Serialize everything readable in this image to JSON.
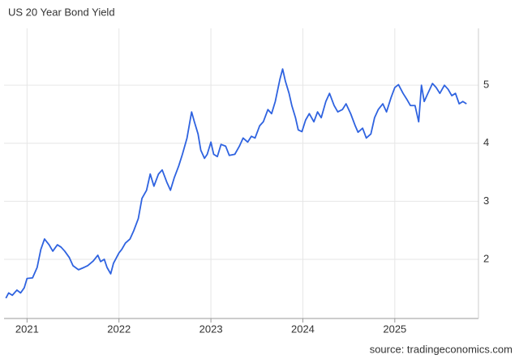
{
  "chart_data": {
    "type": "line",
    "title": "US 20 Year Bond Yield",
    "source": "source: tradingeconomics.com",
    "color": "#2f63e0",
    "grid": true,
    "xlim": [
      2020.75,
      2025.91
    ],
    "xticks": [
      2021,
      2022,
      2023,
      2024,
      2025
    ],
    "ylim": [
      0.98,
      5.98
    ],
    "yticks": [
      2,
      3,
      4,
      5
    ],
    "x": [
      2020.77,
      2020.8,
      2020.84,
      2020.89,
      2020.93,
      2020.97,
      2021.0,
      2021.06,
      2021.11,
      2021.15,
      2021.19,
      2021.24,
      2021.28,
      2021.33,
      2021.37,
      2021.41,
      2021.46,
      2021.5,
      2021.56,
      2021.62,
      2021.66,
      2021.72,
      2021.77,
      2021.8,
      2021.84,
      2021.87,
      2021.91,
      2021.94,
      2022.0,
      2022.03,
      2022.07,
      2022.12,
      2022.16,
      2022.21,
      2022.25,
      2022.3,
      2022.34,
      2022.38,
      2022.43,
      2022.47,
      2022.52,
      2022.56,
      2022.6,
      2022.65,
      2022.69,
      2022.74,
      2022.79,
      2022.82,
      2022.86,
      2022.89,
      2022.93,
      2022.96,
      2023.0,
      2023.03,
      2023.07,
      2023.11,
      2023.16,
      2023.2,
      2023.26,
      2023.31,
      2023.35,
      2023.4,
      2023.44,
      2023.48,
      2023.53,
      2023.57,
      2023.62,
      2023.66,
      2023.7,
      2023.75,
      2023.78,
      2023.81,
      2023.85,
      2023.88,
      2023.92,
      2023.95,
      2023.99,
      2024.03,
      2024.07,
      2024.12,
      2024.16,
      2024.2,
      2024.25,
      2024.29,
      2024.34,
      2024.38,
      2024.43,
      2024.47,
      2024.52,
      2024.57,
      2024.6,
      2024.65,
      2024.69,
      2024.74,
      2024.78,
      2024.82,
      2024.87,
      2024.91,
      2024.96,
      2025.0,
      2025.04,
      2025.09,
      2025.13,
      2025.17,
      2025.22,
      2025.26,
      2025.29,
      2025.32,
      2025.36,
      2025.41,
      2025.45,
      2025.49,
      2025.54,
      2025.58,
      2025.62,
      2025.66,
      2025.7,
      2025.74,
      2025.78
    ],
    "values": [
      1.33,
      1.42,
      1.38,
      1.47,
      1.42,
      1.51,
      1.67,
      1.68,
      1.86,
      2.17,
      2.35,
      2.25,
      2.14,
      2.25,
      2.21,
      2.14,
      2.03,
      1.89,
      1.82,
      1.86,
      1.89,
      1.97,
      2.07,
      1.96,
      2.0,
      1.86,
      1.75,
      1.93,
      2.11,
      2.17,
      2.28,
      2.35,
      2.49,
      2.7,
      3.05,
      3.19,
      3.47,
      3.26,
      3.47,
      3.54,
      3.33,
      3.19,
      3.4,
      3.61,
      3.81,
      4.09,
      4.54,
      4.37,
      4.16,
      3.88,
      3.74,
      3.81,
      4.02,
      3.81,
      3.77,
      3.98,
      3.95,
      3.79,
      3.81,
      3.95,
      4.09,
      4.02,
      4.12,
      4.09,
      4.3,
      4.37,
      4.58,
      4.51,
      4.72,
      5.1,
      5.28,
      5.07,
      4.86,
      4.65,
      4.44,
      4.23,
      4.2,
      4.4,
      4.51,
      4.37,
      4.54,
      4.44,
      4.72,
      4.86,
      4.65,
      4.54,
      4.58,
      4.68,
      4.51,
      4.3,
      4.19,
      4.26,
      4.09,
      4.16,
      4.44,
      4.58,
      4.68,
      4.54,
      4.79,
      4.96,
      5.01,
      4.86,
      4.76,
      4.65,
      4.65,
      4.37,
      5.0,
      4.72,
      4.86,
      5.03,
      4.96,
      4.86,
      5.0,
      4.93,
      4.82,
      4.86,
      4.68,
      4.72,
      4.68
    ]
  }
}
